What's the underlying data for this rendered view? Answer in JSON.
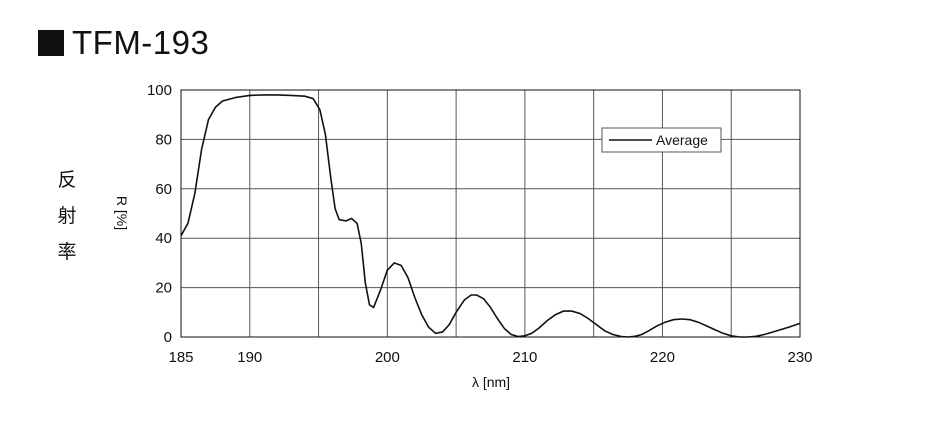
{
  "header": {
    "title": "TFM-193"
  },
  "side_label": [
    "反",
    "射",
    "率"
  ],
  "chart_data": {
    "type": "line",
    "title": "TFM-193",
    "xlabel": "λ [nm]",
    "ylabel": "R [%]",
    "xlim": [
      185,
      230
    ],
    "ylim": [
      0,
      100
    ],
    "xticks": [
      185,
      190,
      200,
      210,
      220,
      230
    ],
    "yticks": [
      0,
      20,
      40,
      60,
      80,
      100
    ],
    "x_gridlines": [
      190,
      195,
      200,
      205,
      210,
      215,
      220,
      225
    ],
    "grid": true,
    "legend": "top-right",
    "colors": {
      "line": "#111111",
      "grid": "#555555"
    },
    "series": [
      {
        "name": "Average",
        "points": [
          [
            185,
            41
          ],
          [
            185.5,
            46
          ],
          [
            186,
            58
          ],
          [
            186.5,
            76
          ],
          [
            187,
            88
          ],
          [
            187.5,
            93
          ],
          [
            188,
            95.5
          ],
          [
            189,
            97
          ],
          [
            190,
            97.8
          ],
          [
            191,
            98
          ],
          [
            192,
            98
          ],
          [
            193,
            97.8
          ],
          [
            194,
            97.5
          ],
          [
            194.6,
            96.5
          ],
          [
            195.1,
            92
          ],
          [
            195.5,
            82
          ],
          [
            195.9,
            64
          ],
          [
            196.2,
            52
          ],
          [
            196.5,
            47.5
          ],
          [
            197,
            47
          ],
          [
            197.4,
            48
          ],
          [
            197.8,
            46
          ],
          [
            198.1,
            38
          ],
          [
            198.4,
            22
          ],
          [
            198.7,
            13
          ],
          [
            199,
            12
          ],
          [
            199.5,
            19
          ],
          [
            200,
            27
          ],
          [
            200.5,
            30
          ],
          [
            201,
            29
          ],
          [
            201.5,
            24
          ],
          [
            202,
            16
          ],
          [
            202.5,
            9
          ],
          [
            203,
            4
          ],
          [
            203.5,
            1.5
          ],
          [
            204,
            2
          ],
          [
            204.5,
            5
          ],
          [
            205,
            10
          ],
          [
            205.6,
            15
          ],
          [
            206.1,
            17
          ],
          [
            206.5,
            17
          ],
          [
            207,
            15.5
          ],
          [
            207.5,
            12
          ],
          [
            208,
            7.5
          ],
          [
            208.5,
            3.5
          ],
          [
            209,
            1
          ],
          [
            209.5,
            0.2
          ],
          [
            210,
            0.5
          ],
          [
            210.5,
            1.5
          ],
          [
            211,
            3.5
          ],
          [
            211.6,
            6.5
          ],
          [
            212.2,
            9
          ],
          [
            212.8,
            10.5
          ],
          [
            213.4,
            10.5
          ],
          [
            214,
            9.5
          ],
          [
            214.6,
            7.5
          ],
          [
            215.2,
            5
          ],
          [
            215.8,
            2.5
          ],
          [
            216.4,
            1
          ],
          [
            217,
            0.2
          ],
          [
            217.5,
            0
          ],
          [
            218,
            0.3
          ],
          [
            218.5,
            1
          ],
          [
            219,
            2.5
          ],
          [
            219.6,
            4.5
          ],
          [
            220.2,
            6
          ],
          [
            220.8,
            7
          ],
          [
            221.4,
            7.3
          ],
          [
            222,
            7
          ],
          [
            222.6,
            6
          ],
          [
            223.2,
            4.5
          ],
          [
            223.8,
            3
          ],
          [
            224.4,
            1.5
          ],
          [
            225,
            0.5
          ],
          [
            225.6,
            0
          ],
          [
            226.2,
            0
          ],
          [
            226.8,
            0.3
          ],
          [
            227.4,
            1
          ],
          [
            228,
            2
          ],
          [
            228.6,
            3
          ],
          [
            229.2,
            4
          ],
          [
            230,
            5.5
          ]
        ]
      }
    ]
  }
}
